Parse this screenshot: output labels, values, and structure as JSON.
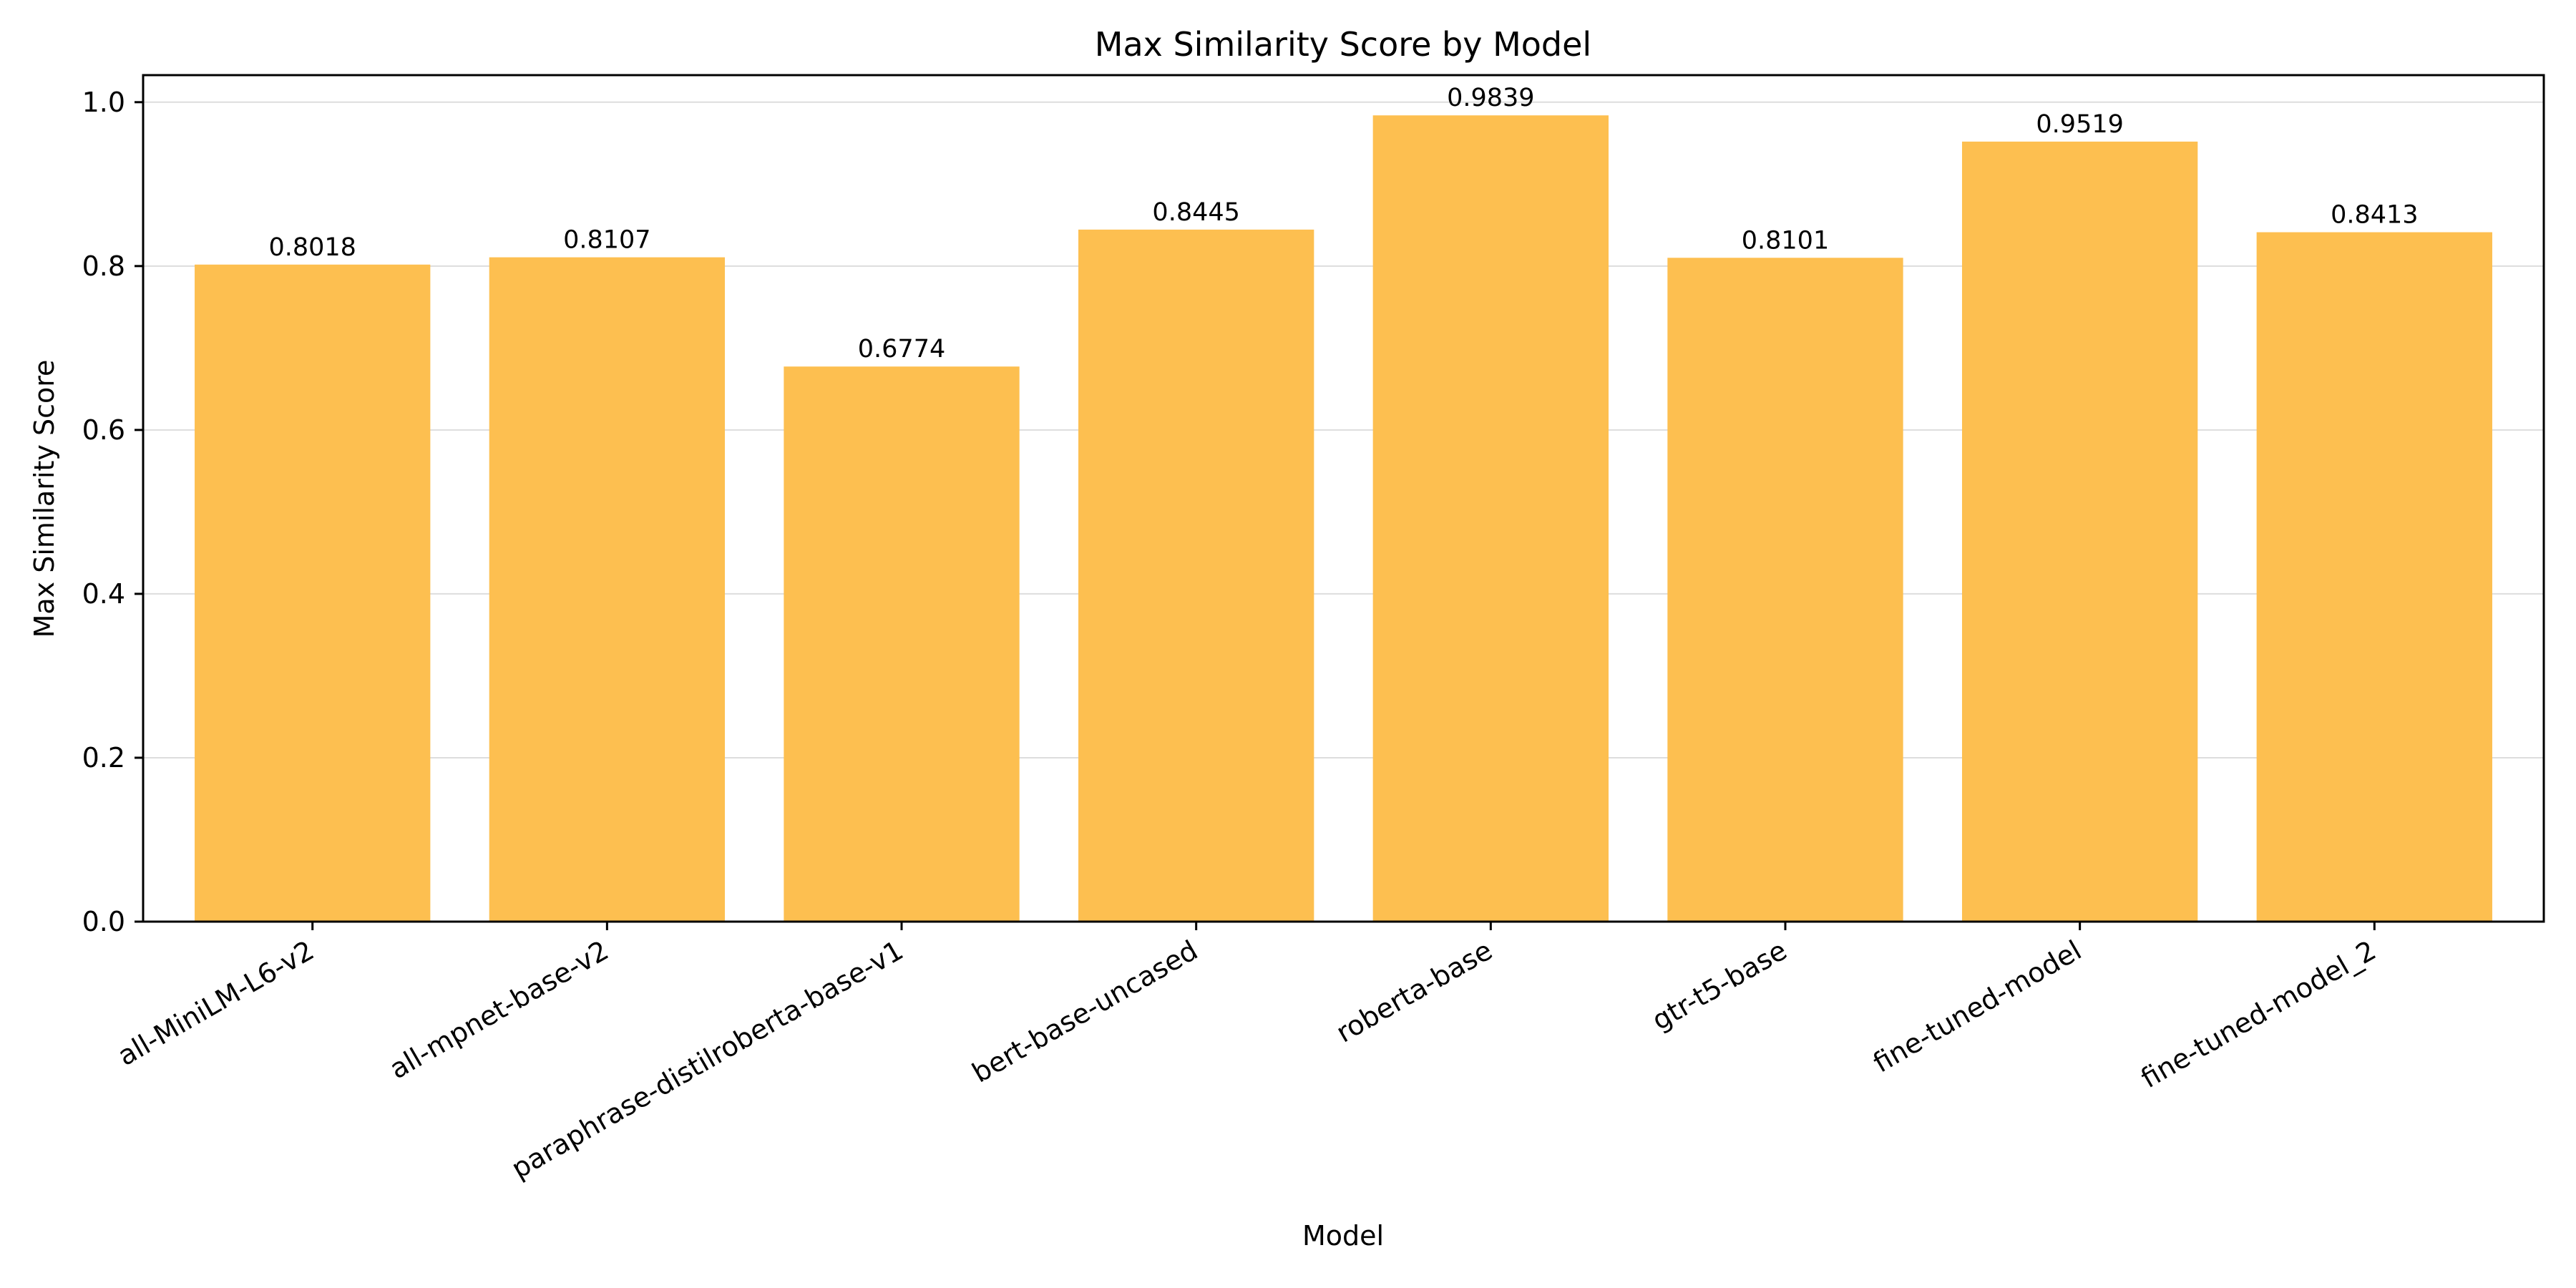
{
  "chart_data": {
    "type": "bar",
    "title": "Max Similarity Score by Model",
    "xlabel": "Model",
    "ylabel": "Max Similarity Score",
    "categories": [
      "all-MiniLM-L6-v2",
      "all-mpnet-base-v2",
      "paraphrase-distilroberta-base-v1",
      "bert-base-uncased",
      "roberta-base",
      "gtr-t5-base",
      "fine-tuned-model",
      "fine-tuned-model_2"
    ],
    "values": [
      0.8018,
      0.8107,
      0.6774,
      0.8445,
      0.9839,
      0.8101,
      0.9519,
      0.8413
    ],
    "value_labels": [
      "0.8018",
      "0.8107",
      "0.6774",
      "0.8445",
      "0.9839",
      "0.8101",
      "0.9519",
      "0.8413"
    ],
    "ylim": [
      0,
      1.033
    ],
    "yticks": [
      0.0,
      0.2,
      0.4,
      0.6,
      0.8,
      1.0
    ],
    "ytick_labels": [
      "0.0",
      "0.2",
      "0.4",
      "0.6",
      "0.8",
      "1.0"
    ],
    "grid": "y",
    "bar_color": "#fdbf50",
    "grid_color": "#dddddd"
  }
}
